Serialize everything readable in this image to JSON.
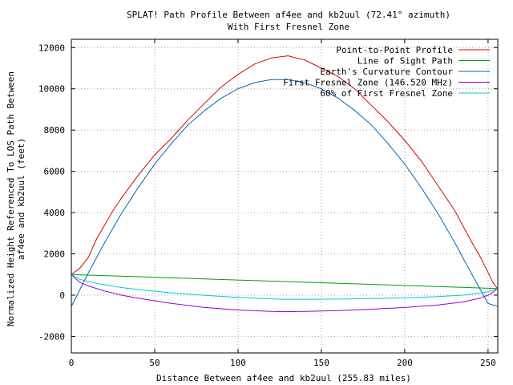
{
  "chart_data": {
    "type": "line",
    "title": "SPLAT! Path Profile Between af4ee and kb2uul (72.41° azimuth)",
    "subtitle": "With First Fresnel Zone",
    "xlabel": "Distance Between af4ee and kb2uul (255.83 miles)",
    "ylabel_line1": "Normalized Height Referenced To LOS Path Between",
    "ylabel_line2": "af4ee and kb2uul (feet)",
    "xlim": [
      0,
      255.83
    ],
    "ylim": [
      -2800,
      12400
    ],
    "xticks": [
      0,
      50,
      100,
      150,
      200,
      250
    ],
    "yticks": [
      -2000,
      0,
      2000,
      4000,
      6000,
      8000,
      10000,
      12000
    ],
    "grid": true,
    "legend_position": "top-right",
    "series": [
      {
        "name": "Point-to-Point Profile",
        "color": "#dd0000",
        "x": [
          0,
          5,
          10,
          15,
          20,
          25,
          30,
          40,
          50,
          60,
          70,
          80,
          90,
          100,
          110,
          120,
          130,
          140,
          150,
          160,
          170,
          180,
          190,
          200,
          210,
          220,
          230,
          240,
          245,
          250,
          253,
          255.83
        ],
        "y": [
          1000,
          1300,
          1800,
          2700,
          3400,
          4100,
          4700,
          5800,
          6800,
          7600,
          8500,
          9300,
          10100,
          10700,
          11200,
          11500,
          11600,
          11400,
          11000,
          10600,
          10000,
          9200,
          8400,
          7500,
          6500,
          5300,
          4100,
          2600,
          1900,
          1100,
          600,
          300
        ]
      },
      {
        "name": "Line of Sight Path",
        "color": "#00a000",
        "x": [
          0,
          255.83
        ],
        "y": [
          1000,
          320
        ]
      },
      {
        "name": "Earth's Curvature Contour",
        "color": "#0066bb",
        "x": [
          0,
          10,
          20,
          30,
          40,
          50,
          60,
          70,
          80,
          90,
          100,
          110,
          120,
          130,
          140,
          150,
          160,
          170,
          180,
          190,
          200,
          210,
          220,
          230,
          240,
          250,
          255.83
        ],
        "y": [
          -550,
          1050,
          2550,
          3950,
          5200,
          6350,
          7350,
          8250,
          8950,
          9550,
          10000,
          10300,
          10450,
          10450,
          10300,
          10000,
          9550,
          8950,
          8250,
          7350,
          6350,
          5200,
          3950,
          2550,
          1050,
          -400,
          -550
        ]
      },
      {
        "name": "First Fresnel Zone (146.520 MHz)",
        "color": "#9900cc",
        "x": [
          0,
          5,
          10,
          20,
          30,
          40,
          60,
          80,
          100,
          120,
          128,
          140,
          160,
          180,
          200,
          220,
          235,
          245,
          250,
          253,
          255.83
        ],
        "y": [
          1000,
          620,
          450,
          200,
          0,
          -150,
          -400,
          -600,
          -720,
          -790,
          -800,
          -790,
          -750,
          -680,
          -600,
          -480,
          -330,
          -150,
          0,
          150,
          320
        ]
      },
      {
        "name": "60% of First Fresnel Zone",
        "color": "#00cccc",
        "x": [
          0,
          5,
          10,
          20,
          30,
          40,
          60,
          80,
          100,
          120,
          128,
          140,
          160,
          180,
          200,
          220,
          235,
          245,
          250,
          253,
          255.83
        ],
        "y": [
          1000,
          770,
          660,
          500,
          370,
          270,
          110,
          -10,
          -110,
          -180,
          -200,
          -200,
          -190,
          -170,
          -130,
          -70,
          0,
          100,
          170,
          240,
          320
        ]
      }
    ]
  }
}
